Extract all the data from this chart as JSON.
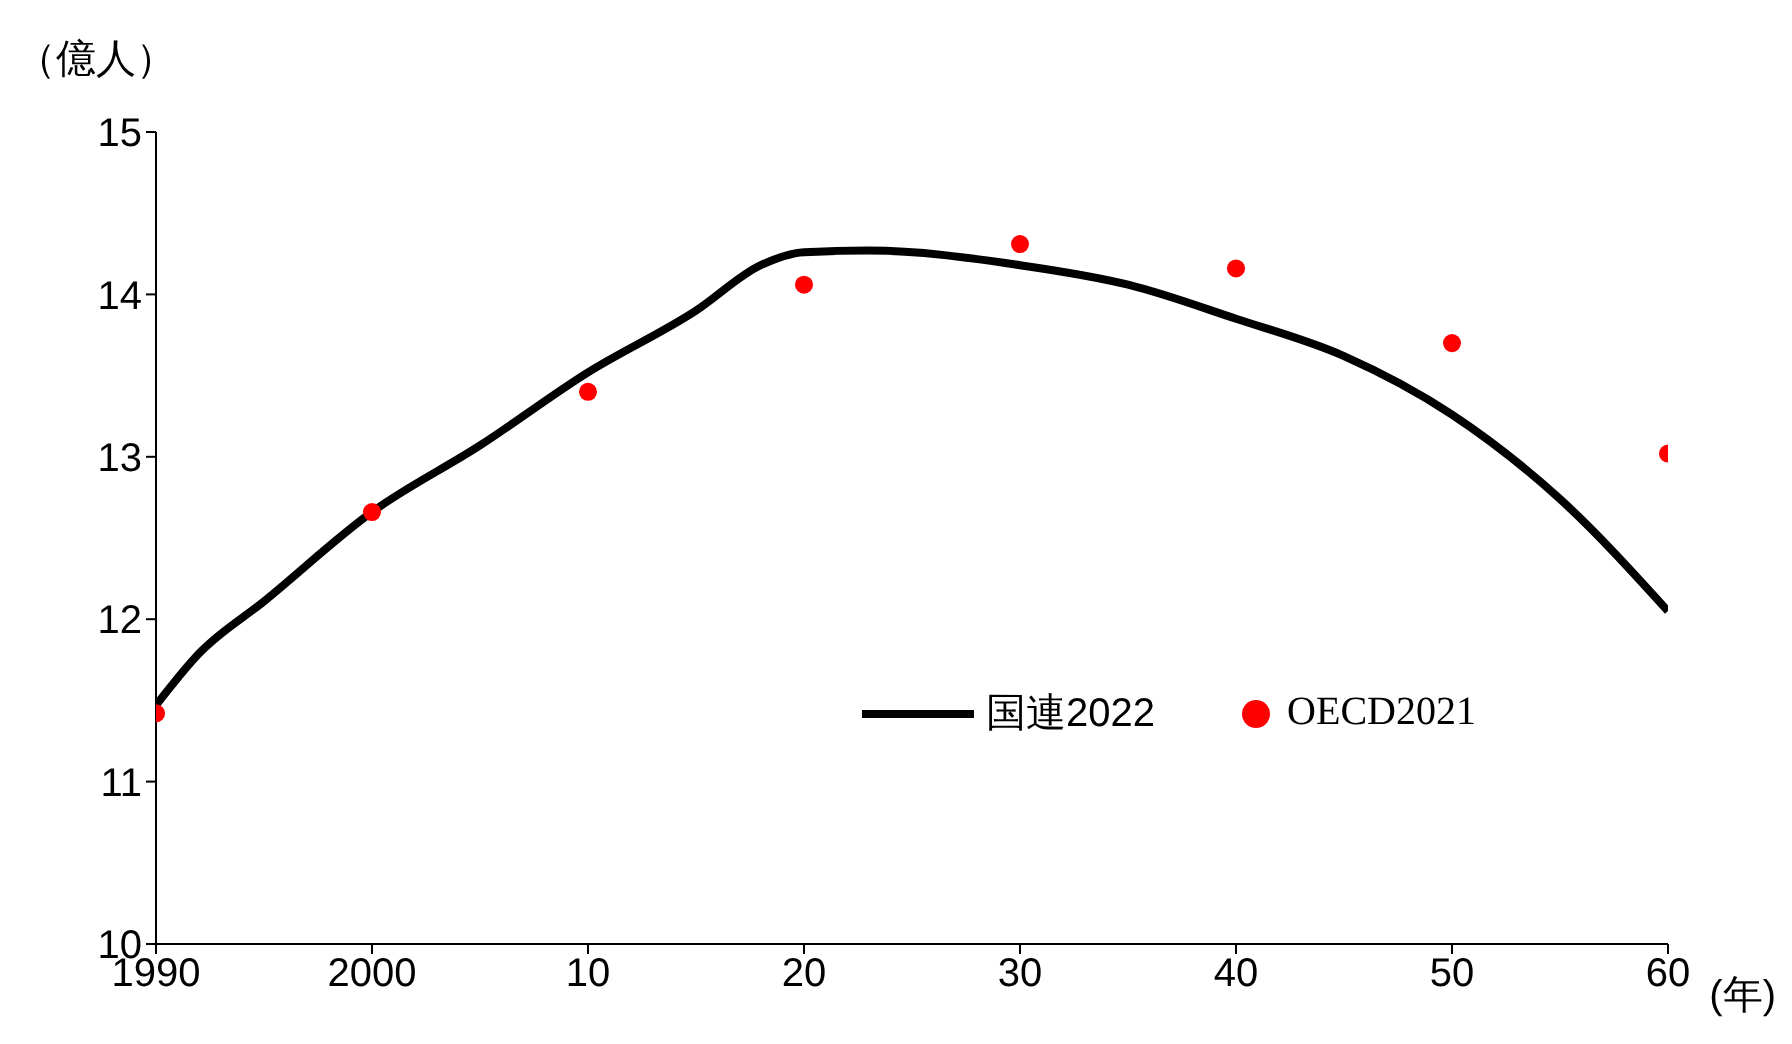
{
  "chart_data": {
    "type": "line",
    "ylabel": "（億人）",
    "xlabel": "(年)",
    "xlim": [
      1990,
      2060
    ],
    "xticks": [
      1990,
      2000,
      {
        "value": 2010,
        "label": "10"
      },
      {
        "value": 2020,
        "label": "20"
      },
      {
        "value": 2030,
        "label": "30"
      },
      {
        "value": 2040,
        "label": "40"
      },
      {
        "value": 2050,
        "label": "50"
      },
      {
        "value": 2060,
        "label": "60"
      }
    ],
    "ylim": [
      10,
      15
    ],
    "yticks": [
      10,
      11,
      12,
      13,
      14,
      15
    ],
    "grid": false,
    "legend": "right",
    "series": [
      {
        "name": "国連2022",
        "color": "#000000",
        "marker": "none",
        "x": [
          1990,
          1992,
          1995,
          2000,
          2005,
          2010,
          2015,
          2018,
          2020,
          2023,
          2030,
          2035,
          2040,
          2045,
          2050,
          2055,
          2060
        ],
        "values": [
          11.47,
          11.79,
          12.11,
          12.66,
          13.07,
          13.52,
          13.9,
          14.18,
          14.26,
          14.27,
          14.18,
          14.06,
          13.85,
          13.62,
          13.26,
          12.74,
          12.05
        ]
      },
      {
        "name": "OECD2021",
        "type": "scatter",
        "color": "#ff0000",
        "marker": "circle",
        "x": [
          1990,
          2000,
          2010,
          2020,
          2030,
          2040,
          2050,
          2060
        ],
        "values": [
          11.42,
          12.66,
          13.4,
          14.06,
          14.31,
          14.16,
          13.7,
          13.02
        ]
      }
    ]
  }
}
